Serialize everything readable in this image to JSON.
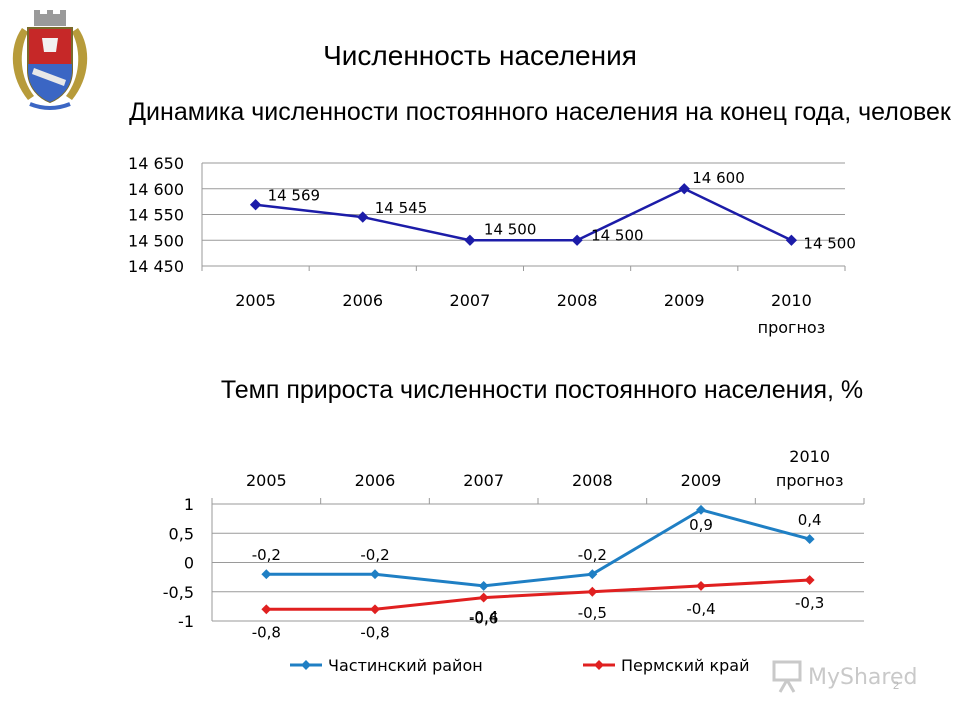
{
  "page_title": "Численность населения",
  "page_number": "2",
  "watermark": {
    "text": "MyShared",
    "icon": "presentation-board-icon"
  },
  "chart_data": [
    {
      "type": "line",
      "title": "Динамика численности постоянного населения на конец года, человек",
      "categories": [
        "2005",
        "2006",
        "2007",
        "2008",
        "2009",
        "2010"
      ],
      "category_sublabels": [
        "",
        "",
        "",
        "",
        "",
        "прогноз"
      ],
      "ylim": [
        14450,
        14650
      ],
      "yticks": [
        "14 450",
        "14 500",
        "14 550",
        "14 600",
        "14 650"
      ],
      "grid": true,
      "series": [
        {
          "values": [
            14569,
            14545,
            14500,
            14500,
            14600,
            14500
          ],
          "labels": [
            "14 569",
            "14 545",
            "14 500",
            "14 500",
            "14 600",
            "14 500"
          ],
          "color": "#1c1ca8"
        }
      ]
    },
    {
      "type": "line",
      "title": "Темп прироста численности постоянного населения, %",
      "categories": [
        "2005",
        "2006",
        "2007",
        "2008",
        "2009",
        "2010"
      ],
      "category_sublabels": [
        "",
        "",
        "",
        "",
        "",
        "прогноз"
      ],
      "xaxis_position": "top",
      "ylim": [
        -1,
        1
      ],
      "yticks": [
        "-1",
        "-0,5",
        "0",
        "0,5",
        "1"
      ],
      "grid": true,
      "legend": "bottom",
      "series": [
        {
          "name": "Частинский район",
          "values": [
            -0.2,
            -0.2,
            -0.4,
            -0.2,
            0.9,
            0.4
          ],
          "labels": [
            "-0,2",
            "-0,2",
            "-0,4",
            "-0,2",
            "0,9",
            "0,4"
          ],
          "color": "#1f7fc4"
        },
        {
          "name": "Пермский край",
          "values": [
            -0.8,
            -0.8,
            -0.6,
            -0.5,
            -0.4,
            -0.3
          ],
          "labels": [
            "-0,8",
            "-0,8",
            "-0,6",
            "-0,5",
            "-0,4",
            "-0,3"
          ],
          "color": "#e02020"
        }
      ]
    }
  ]
}
